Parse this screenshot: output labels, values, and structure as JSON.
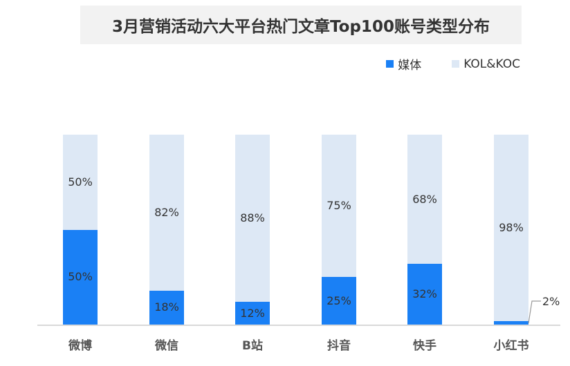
{
  "title": "3月营销活动六大平台热门文章Top100账号类型分布",
  "legend": [
    {
      "label": "媒体",
      "color": "#1a80f5"
    },
    {
      "label": "KOL&KOC",
      "color": "#dde8f5"
    }
  ],
  "chart_data": {
    "type": "bar",
    "stacked": true,
    "title": "3月营销活动六大平台热门文章Top100账号类型分布",
    "xlabel": "",
    "ylabel": "",
    "ylim": [
      0,
      100
    ],
    "categories": [
      "微博",
      "微信",
      "B站",
      "抖音",
      "快手",
      "小红书"
    ],
    "series": [
      {
        "name": "媒体",
        "color": "#1a80f5",
        "values": [
          50,
          18,
          12,
          25,
          32,
          2
        ]
      },
      {
        "name": "KOL&KOC",
        "color": "#dde8f5",
        "values": [
          50,
          82,
          88,
          75,
          68,
          98
        ]
      }
    ],
    "data_labels": {
      "媒体": [
        "50%",
        "18%",
        "12%",
        "25%",
        "32%",
        "2%"
      ],
      "KOL&KOC": [
        "50%",
        "82%",
        "88%",
        "75%",
        "68%",
        "98%"
      ]
    },
    "legend_position": "top-right",
    "grid": false
  }
}
